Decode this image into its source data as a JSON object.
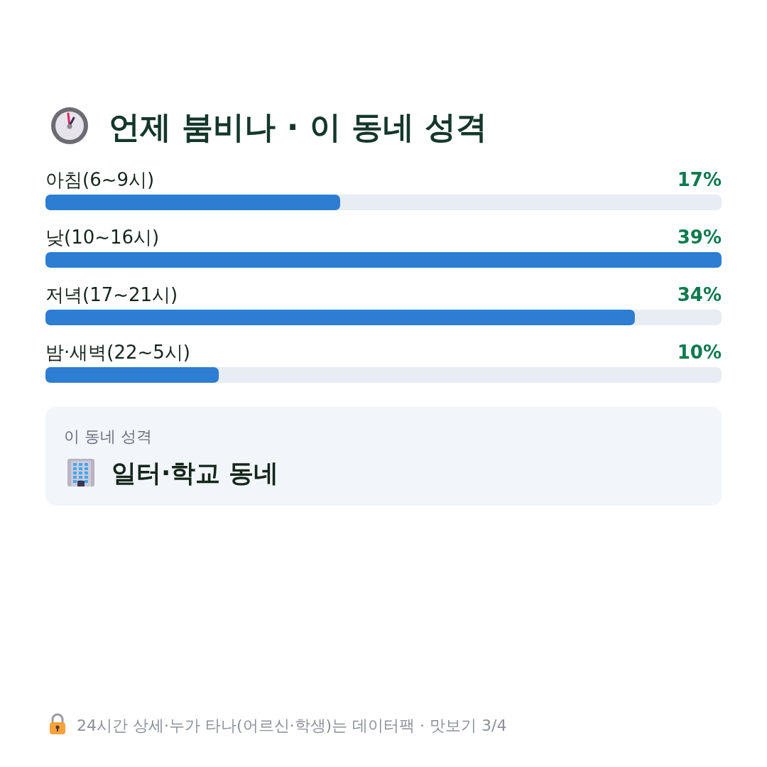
{
  "chart_data": {
    "type": "bar",
    "orientation": "horizontal",
    "title": "언제 붐비나 · 이 동네 성격",
    "categories": [
      "아침(6~9시)",
      "낮(10~16시)",
      "저녁(17~21시)",
      "밤·새벽(22~5시)"
    ],
    "values": [
      17,
      39,
      34,
      10
    ],
    "value_labels": [
      "17%",
      "39%",
      "34%",
      "10%"
    ],
    "color": "#2d7dd2",
    "annotations": [
      "이 동네 성격",
      "일터·학교 동네",
      "24시간 상세·누가 타나(어르신·학생)는 데이터팩 · 맛보기 3/4"
    ]
  }
}
